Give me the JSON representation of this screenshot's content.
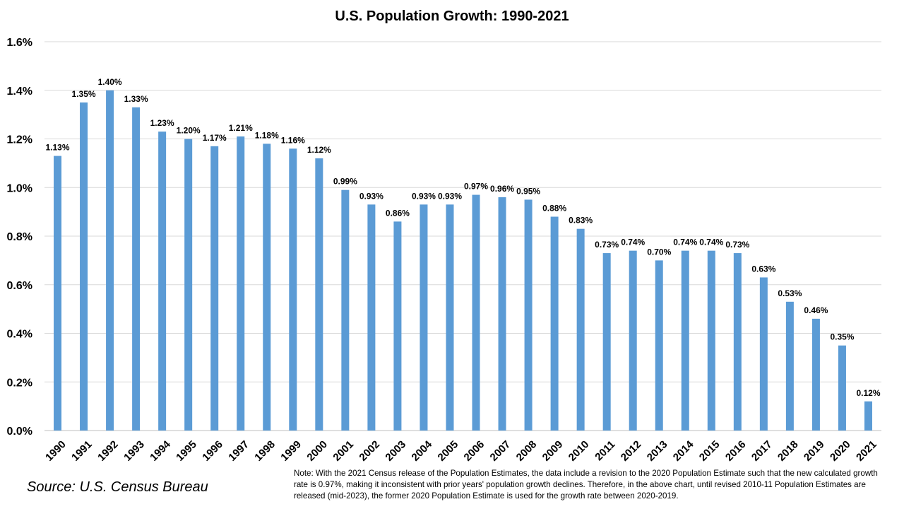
{
  "chart_data": {
    "type": "bar",
    "title": "U.S. Population Growth: 1990-2021",
    "xlabel": "",
    "ylabel": "",
    "ylim": [
      0,
      1.6
    ],
    "ytick_values": [
      0,
      0.2,
      0.4,
      0.6,
      0.8,
      1.0,
      1.2,
      1.4,
      1.6
    ],
    "ytick_labels": [
      "0.0%",
      "0.2%",
      "0.4%",
      "0.6%",
      "0.8%",
      "1.0%",
      "1.2%",
      "1.4%",
      "1.6%"
    ],
    "grid": true,
    "legend": "none",
    "bar_color": "#5B9BD5",
    "categories": [
      "1990",
      "1991",
      "1992",
      "1993",
      "1994",
      "1995",
      "1996",
      "1997",
      "1998",
      "1999",
      "2000",
      "2001",
      "2002",
      "2003",
      "2004",
      "2005",
      "2006",
      "2007",
      "2008",
      "2009",
      "2010",
      "2011",
      "2012",
      "2013",
      "2014",
      "2015",
      "2016",
      "2017",
      "2018",
      "2019",
      "2020",
      "2021"
    ],
    "values": [
      1.13,
      1.35,
      1.4,
      1.33,
      1.23,
      1.2,
      1.17,
      1.21,
      1.18,
      1.16,
      1.12,
      0.99,
      0.93,
      0.86,
      0.93,
      0.93,
      0.97,
      0.96,
      0.95,
      0.88,
      0.83,
      0.73,
      0.74,
      0.7,
      0.74,
      0.74,
      0.73,
      0.63,
      0.53,
      0.46,
      0.35,
      0.12
    ],
    "data_labels": [
      "1.13%",
      "1.35%",
      "1.40%",
      "1.33%",
      "1.23%",
      "1.20%",
      "1.17%",
      "1.21%",
      "1.18%",
      "1.16%",
      "1.12%",
      "0.99%",
      "0.93%",
      "0.86%",
      "0.93%",
      "0.93%",
      "0.97%",
      "0.96%",
      "0.95%",
      "0.88%",
      "0.83%",
      "0.73%",
      "0.74%",
      "0.70%",
      "0.74%",
      "0.74%",
      "0.73%",
      "0.63%",
      "0.53%",
      "0.46%",
      "0.35%",
      "0.12%"
    ]
  },
  "source": "Source: U.S. Census Bureau",
  "note": "Note: With the 2021 Census release of the Population Estimates, the data include a revision to the 2020 Population Estimate such that the new calculated growth rate is 0.97%, making it inconsistent with prior years' population growth declines. Therefore, in the above chart, until revised 2010-11 Population Estimates are released (mid-2023), the former 2020 Population Estimate is used for the growth rate between 2020-2019."
}
